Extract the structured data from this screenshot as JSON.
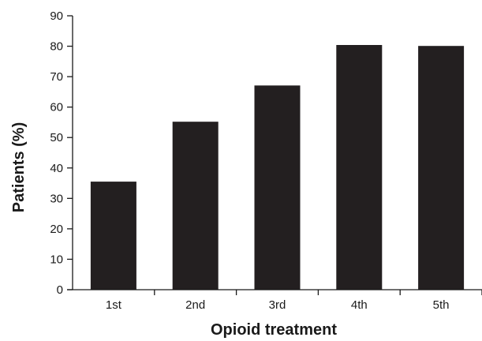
{
  "chart_data": {
    "type": "bar",
    "title": "",
    "xlabel": "Opioid treatment",
    "ylabel": "Patients (%)",
    "categories": [
      "1st",
      "2nd",
      "3rd",
      "4th",
      "5th"
    ],
    "values": [
      35.5,
      55.2,
      67.1,
      80.4,
      80.1
    ],
    "ylim": [
      0,
      90
    ],
    "yticks": [
      "0",
      "10",
      "20",
      "30",
      "40",
      "50",
      "60",
      "70",
      "80",
      "90"
    ],
    "grid": false,
    "legend": "none",
    "bar_color": "#231f20",
    "axis_color": "#1a1a1a"
  }
}
